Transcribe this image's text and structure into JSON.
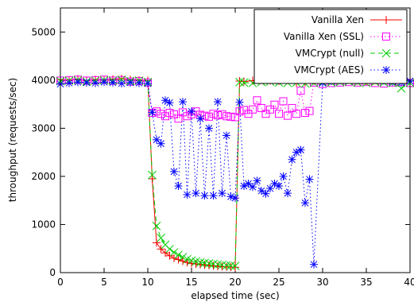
{
  "chart_data": {
    "type": "line",
    "xlabel": "elapsed time (sec)",
    "ylabel": "throughput (requests/sec)",
    "xlim": [
      0,
      40
    ],
    "ylim": [
      0,
      5500
    ],
    "xticks": [
      0,
      5,
      10,
      15,
      20,
      25,
      30,
      35,
      40
    ],
    "yticks": [
      0,
      1000,
      2000,
      3000,
      4000,
      5000
    ],
    "grid": false,
    "legend_position": "top-right",
    "series": [
      {
        "name": "Vanilla Xen",
        "color": "#ff0000",
        "marker": "plus",
        "dash": "solid",
        "x": [
          0,
          1,
          2,
          3,
          4,
          5,
          6,
          7,
          8,
          9,
          10,
          10.5,
          11,
          11.5,
          12,
          12.5,
          13,
          13.5,
          14,
          14.5,
          15,
          15.5,
          16,
          16.5,
          17,
          17.5,
          18,
          18.5,
          19,
          19.5,
          20,
          20.5,
          21,
          22,
          23,
          24,
          25,
          26,
          27,
          28,
          29,
          30,
          31,
          32,
          33,
          34,
          35,
          36,
          37,
          38,
          39,
          40
        ],
        "y": [
          4010,
          4000,
          4020,
          3990,
          4010,
          4000,
          4020,
          4030,
          4010,
          4000,
          3990,
          1950,
          620,
          490,
          410,
          350,
          300,
          270,
          240,
          210,
          190,
          180,
          170,
          160,
          150,
          140,
          130,
          125,
          120,
          115,
          110,
          3980,
          3970,
          3990,
          4000,
          3990,
          3980,
          4010,
          3940,
          3950,
          3990,
          4000,
          3990,
          4000,
          4010,
          3990,
          3980,
          4000,
          4010,
          3990,
          4000,
          3980
        ]
      },
      {
        "name": "Vanilla Xen (SSL)",
        "color": "#ff00ff",
        "marker": "square",
        "dash": "dotted",
        "x": [
          0,
          1,
          2,
          3,
          4,
          5,
          6,
          7,
          8,
          9,
          10,
          10.5,
          11,
          11.5,
          12,
          12.5,
          13,
          13.5,
          14,
          14.5,
          15,
          15.5,
          16,
          16.5,
          17,
          17.5,
          18,
          18.5,
          19,
          19.5,
          20,
          20.5,
          21,
          21.5,
          22,
          22.5,
          23,
          23.5,
          24,
          24.5,
          25,
          25.5,
          26,
          26.5,
          27,
          27.5,
          28,
          28.5,
          29,
          30,
          31,
          32,
          33,
          34,
          35,
          36,
          37,
          38,
          39,
          40
        ],
        "y": [
          3990,
          4000,
          4010,
          3990,
          4000,
          4010,
          3990,
          4000,
          3970,
          3980,
          3950,
          3320,
          3350,
          3300,
          3250,
          3320,
          3290,
          3200,
          3330,
          3250,
          3290,
          3350,
          3280,
          3260,
          3240,
          3300,
          3270,
          3290,
          3250,
          3240,
          3230,
          3350,
          3380,
          3300,
          3390,
          3580,
          3420,
          3300,
          3390,
          3490,
          3300,
          3560,
          3260,
          3420,
          3300,
          3780,
          3320,
          3360,
          3950,
          3920,
          3940,
          3950,
          3960,
          3950,
          3960,
          3940,
          3930,
          3950,
          3960,
          3940
        ]
      },
      {
        "name": "VMCrypt (null)",
        "color": "#00cc00",
        "marker": "cross",
        "dash": "dashed",
        "x": [
          0,
          1,
          2,
          3,
          4,
          5,
          6,
          7,
          8,
          9,
          10,
          10.5,
          11,
          11.5,
          12,
          12.5,
          13,
          13.5,
          14,
          14.5,
          15,
          15.5,
          16,
          16.5,
          17,
          17.5,
          18,
          18.5,
          19,
          19.5,
          20,
          20.5,
          21,
          22,
          23,
          24,
          25,
          26,
          27,
          28,
          29,
          30,
          31,
          32,
          33,
          34,
          35,
          36,
          37,
          38,
          39,
          40
        ],
        "y": [
          3980,
          3990,
          4000,
          3970,
          3990,
          4000,
          3990,
          4010,
          3980,
          3990,
          3960,
          2030,
          970,
          720,
          580,
          490,
          420,
          370,
          320,
          280,
          250,
          230,
          210,
          200,
          190,
          180,
          170,
          160,
          150,
          145,
          140,
          3960,
          3950,
          3940,
          3960,
          3970,
          3950,
          3940,
          3950,
          3930,
          3940,
          3960,
          3950,
          3960,
          3970,
          3950,
          3940,
          3960,
          3950,
          3940,
          3830,
          3940
        ]
      },
      {
        "name": "VMCrypt (AES)",
        "color": "#0000ff",
        "marker": "star",
        "dash": "dotted",
        "x": [
          0,
          1,
          2,
          3,
          4,
          5,
          6,
          7,
          8,
          9,
          10,
          10.5,
          11,
          11.5,
          12,
          12.5,
          13,
          13.5,
          14,
          14.5,
          15,
          15.5,
          16,
          16.5,
          17,
          17.5,
          18,
          18.5,
          19,
          19.5,
          20,
          20.5,
          21,
          21.5,
          22,
          22.5,
          23,
          23.5,
          24,
          24.5,
          25,
          25.5,
          26,
          26.5,
          27,
          27.5,
          28,
          28.5,
          29,
          30,
          31,
          32,
          33,
          34,
          35,
          36,
          37,
          38,
          39,
          40
        ],
        "y": [
          3920,
          3940,
          3960,
          3950,
          3940,
          3960,
          3950,
          3930,
          3950,
          3940,
          3930,
          3330,
          2760,
          2680,
          3580,
          3530,
          2100,
          1800,
          3550,
          1620,
          3350,
          1650,
          3200,
          1600,
          3000,
          1600,
          3550,
          1650,
          2850,
          1580,
          1550,
          3540,
          1800,
          1850,
          1780,
          1910,
          1700,
          1640,
          1750,
          1850,
          1800,
          2000,
          1650,
          2350,
          2500,
          2550,
          1450,
          1940,
          170,
          3940,
          3980,
          3990,
          4010,
          4000,
          4030,
          4020,
          3990,
          3970,
          3950,
          3980
        ]
      }
    ]
  }
}
